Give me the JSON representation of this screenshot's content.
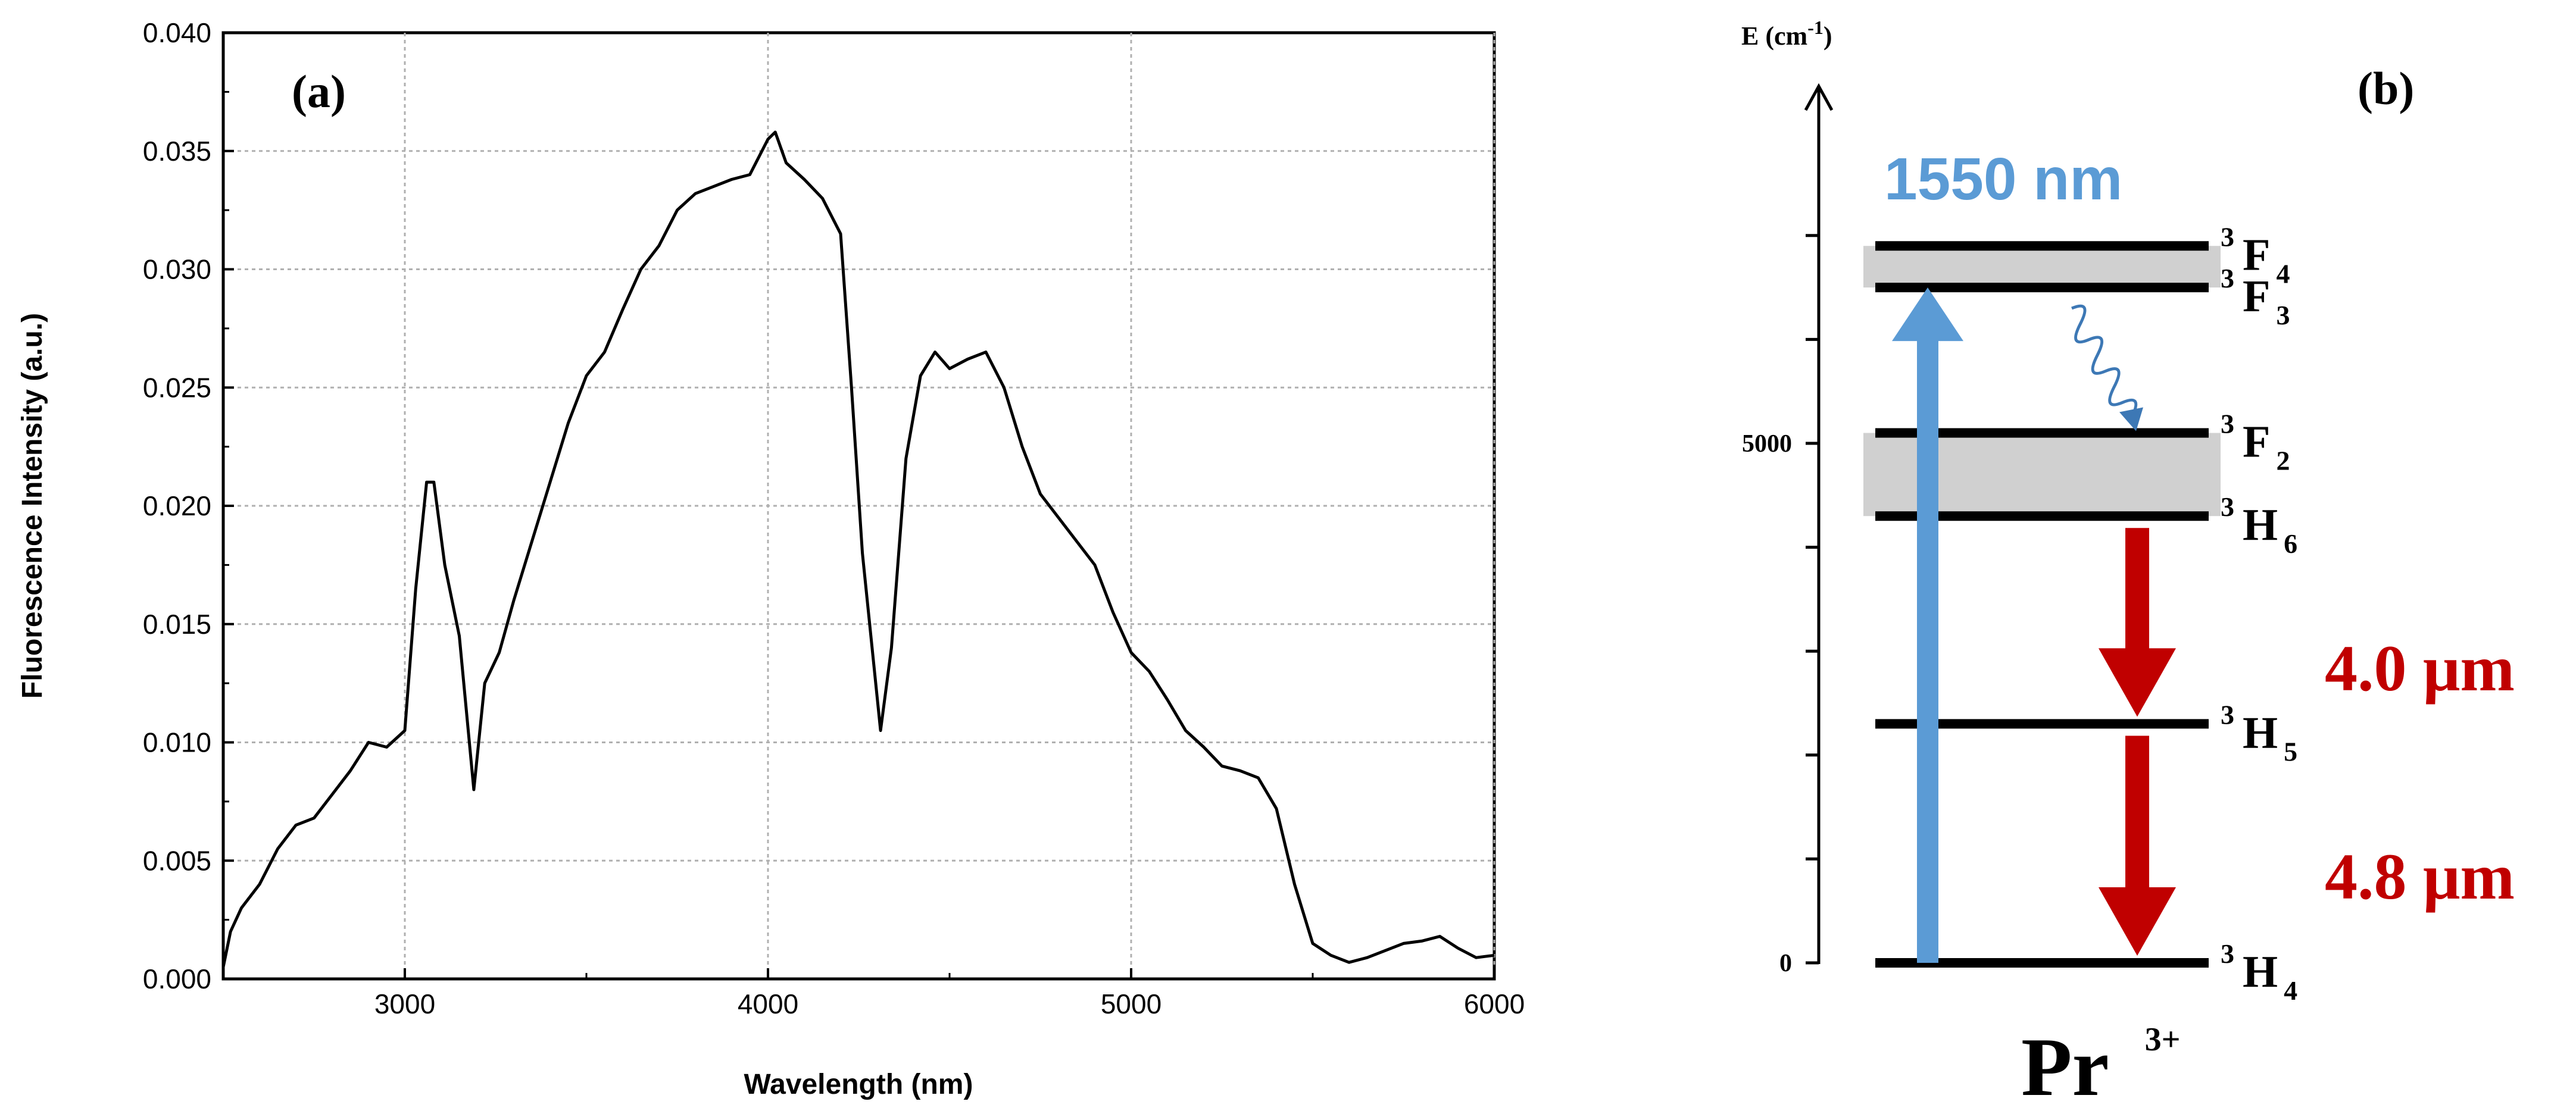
{
  "panel_a": {
    "label": "(a)",
    "chart_data": {
      "type": "line",
      "title": "",
      "xlabel": "Wavelength (nm)",
      "ylabel": "Fluorescence Intensity (a.u.)",
      "xlim": [
        2500,
        6000
      ],
      "ylim": [
        0,
        0.04
      ],
      "x_ticks": [
        3000,
        4000,
        5000,
        6000
      ],
      "x_tick_labels": [
        "3000",
        "4000",
        "5000",
        "6000"
      ],
      "y_ticks": [
        0,
        0.005,
        0.01,
        0.015,
        0.02,
        0.025,
        0.03,
        0.035,
        0.04
      ],
      "y_tick_labels": [
        "0.000",
        "0.005",
        "0.010",
        "0.015",
        "0.020",
        "0.025",
        "0.030",
        "0.035",
        "0.040"
      ],
      "grid": true,
      "line_color": "#000000",
      "series": [
        {
          "x": [
            2500,
            2520,
            2550,
            2600,
            2650,
            2700,
            2750,
            2800,
            2850,
            2900,
            2950,
            3000,
            3030,
            3060,
            3080,
            3110,
            3150,
            3190,
            3220,
            3260,
            3300,
            3350,
            3400,
            3450,
            3500,
            3550,
            3600,
            3650,
            3700,
            3750,
            3800,
            3850,
            3900,
            3950,
            4000,
            4020,
            4050,
            4100,
            4150,
            4200,
            4230,
            4260,
            4290,
            4310,
            4340,
            4380,
            4420,
            4460,
            4500,
            4550,
            4600,
            4650,
            4700,
            4750,
            4800,
            4850,
            4900,
            4950,
            5000,
            5050,
            5100,
            5150,
            5200,
            5250,
            5300,
            5350,
            5400,
            5450,
            5500,
            5550,
            5600,
            5650,
            5700,
            5750,
            5800,
            5850,
            5900,
            5950,
            6000
          ],
          "y": [
            0.0005,
            0.002,
            0.003,
            0.004,
            0.0055,
            0.0065,
            0.0068,
            0.0078,
            0.0088,
            0.01,
            0.0098,
            0.0105,
            0.0165,
            0.021,
            0.021,
            0.0175,
            0.0145,
            0.008,
            0.0125,
            0.0138,
            0.016,
            0.0185,
            0.021,
            0.0235,
            0.0255,
            0.0265,
            0.0283,
            0.03,
            0.031,
            0.0325,
            0.0332,
            0.0335,
            0.0338,
            0.034,
            0.0355,
            0.0358,
            0.0345,
            0.0338,
            0.033,
            0.0315,
            0.025,
            0.018,
            0.0135,
            0.0105,
            0.014,
            0.022,
            0.0255,
            0.0265,
            0.0258,
            0.0262,
            0.0265,
            0.025,
            0.0225,
            0.0205,
            0.0195,
            0.0185,
            0.0175,
            0.0155,
            0.0138,
            0.013,
            0.0118,
            0.0105,
            0.0098,
            0.009,
            0.0088,
            0.0085,
            0.0072,
            0.004,
            0.0015,
            0.001,
            0.0007,
            0.0009,
            0.0012,
            0.0015,
            0.0016,
            0.0018,
            0.0013,
            0.0009,
            0.001
          ]
        }
      ]
    }
  },
  "panel_b": {
    "label": "(b)",
    "axis_label": "E (cm",
    "axis_label_sup": "-1",
    "axis_label_close": ")",
    "ticks": [
      {
        "value": 0,
        "label": "0"
      },
      {
        "value": 5000,
        "label": "5000"
      }
    ],
    "energy_max_shown": 7000,
    "levels": [
      {
        "name": "3H4",
        "sup": "3",
        "base": "H",
        "sub": "4",
        "energy": 0
      },
      {
        "name": "3H5",
        "sup": "3",
        "base": "H",
        "sub": "5",
        "energy": 2300
      },
      {
        "name": "3H6",
        "sup": "3",
        "base": "H",
        "sub": "6",
        "energy": 4300
      },
      {
        "name": "3F2",
        "sup": "3",
        "base": "F",
        "sub": "2",
        "energy": 5100
      },
      {
        "name": "3F3",
        "sup": "3",
        "base": "F",
        "sub": "3",
        "energy": 6500
      },
      {
        "name": "3F4",
        "sup": "3",
        "base": "F",
        "sub": "4",
        "energy": 6900
      }
    ],
    "bands": [
      {
        "from": "3H6",
        "to": "3F2"
      },
      {
        "from": "3F3",
        "to": "3F4"
      }
    ],
    "pump": {
      "label": "1550 nm",
      "color": "#5b9bd5",
      "from": "3H4",
      "to": "3F3"
    },
    "emissions": [
      {
        "label": "4.0 μm",
        "from": "3H6",
        "to": "3H5",
        "color": "#c00000"
      },
      {
        "label": "4.8 μm",
        "from": "3H5",
        "to": "3H4",
        "color": "#c00000"
      }
    ],
    "nonradiative": {
      "from": "3F3",
      "to": "3F2",
      "color": "#3d78b5"
    },
    "ion": {
      "base": "Pr",
      "sup": "3+"
    },
    "colors": {
      "band": "#d0d0d0",
      "level": "#000000"
    }
  }
}
